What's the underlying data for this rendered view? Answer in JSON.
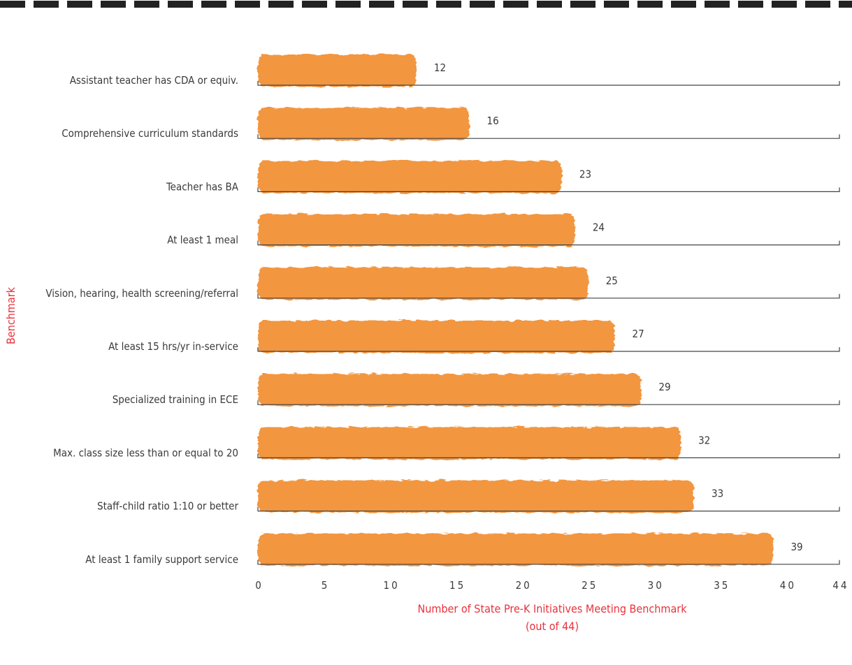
{
  "chart_data": {
    "type": "bar",
    "orientation": "horizontal",
    "categories": [
      "Assistant teacher has CDA or equiv.",
      "Comprehensive curriculum standards",
      "Teacher has BA",
      "At least 1 meal",
      "Vision, hearing, health screening/referral",
      "At least 15 hrs/yr in-service",
      "Specialized training in ECE",
      "Max. class size less than or equal to 20",
      "Staff-child ratio 1:10 or better",
      "At least 1 family support service"
    ],
    "values": [
      12,
      16,
      23,
      24,
      25,
      27,
      29,
      32,
      33,
      39
    ],
    "value_labels": [
      "12",
      "16",
      "23",
      "24",
      "25",
      "27",
      "29",
      "32",
      "33",
      "39"
    ],
    "xticks": [
      0,
      5,
      10,
      15,
      20,
      25,
      30,
      35,
      40,
      44
    ],
    "xtick_labels": [
      "0",
      "5",
      "10",
      "15",
      "20",
      "25",
      "30",
      "35",
      "40",
      "44"
    ],
    "xlim": [
      0,
      44
    ],
    "xlabel_line1": "Number of State Pre-K Initiatives Meeting Benchmark",
    "xlabel_line2": "(out of 44)",
    "ylabel": "Benchmark",
    "grid": false,
    "colors": {
      "bar": "#f2963f",
      "axis_title": "#e8323c",
      "text": "#3a3a3a",
      "top_border": "#222222"
    }
  }
}
